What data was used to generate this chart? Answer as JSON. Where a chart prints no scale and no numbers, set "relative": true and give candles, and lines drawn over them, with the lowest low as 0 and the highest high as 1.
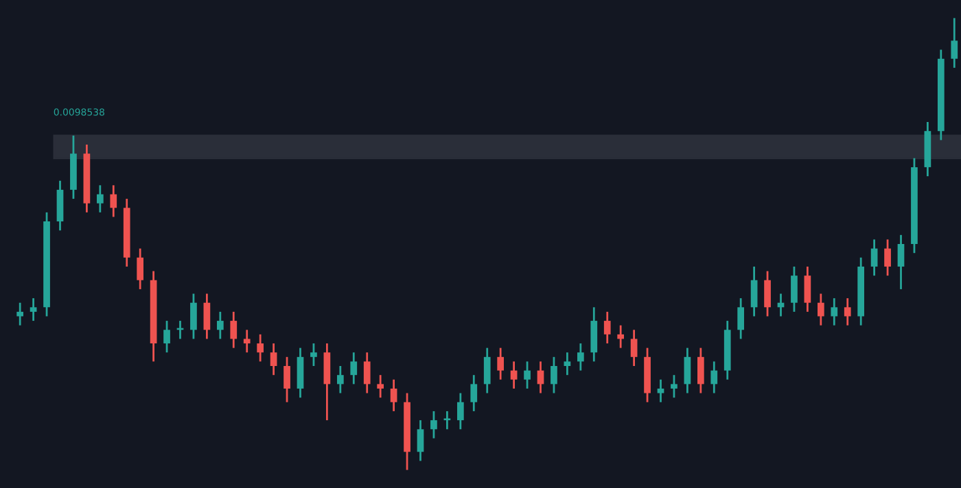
{
  "chart_data": {
    "type": "candlestick",
    "relative": true,
    "grid": false,
    "legend": false,
    "categories": [
      null,
      null,
      null,
      null,
      null,
      null,
      null,
      null,
      null,
      null,
      null,
      null,
      null,
      null,
      null,
      null,
      null,
      null,
      null,
      null,
      null,
      null,
      null,
      null,
      null,
      null,
      null,
      null,
      null,
      null,
      null,
      null,
      null,
      null,
      null,
      null,
      null,
      null,
      null,
      null,
      null,
      null,
      null,
      null,
      null,
      null,
      null,
      null,
      null,
      null,
      null,
      null,
      null,
      null,
      null,
      null,
      null,
      null,
      null,
      null,
      null,
      null,
      null,
      null,
      null,
      null,
      null,
      null,
      null,
      null,
      null
    ],
    "ohlc": [
      [
        0.34,
        0.37,
        0.32,
        0.35
      ],
      [
        0.35,
        0.38,
        0.33,
        0.36
      ],
      [
        0.36,
        0.57,
        0.34,
        0.55
      ],
      [
        0.55,
        0.64,
        0.53,
        0.62
      ],
      [
        0.62,
        0.74,
        0.6,
        0.7
      ],
      [
        0.7,
        0.72,
        0.57,
        0.59
      ],
      [
        0.59,
        0.63,
        0.57,
        0.61
      ],
      [
        0.61,
        0.63,
        0.56,
        0.58
      ],
      [
        0.58,
        0.6,
        0.45,
        0.47
      ],
      [
        0.47,
        0.49,
        0.4,
        0.42
      ],
      [
        0.42,
        0.44,
        0.24,
        0.28
      ],
      [
        0.28,
        0.33,
        0.26,
        0.31
      ],
      [
        0.31,
        0.33,
        0.29,
        0.31
      ],
      [
        0.31,
        0.39,
        0.29,
        0.37
      ],
      [
        0.37,
        0.39,
        0.29,
        0.31
      ],
      [
        0.31,
        0.35,
        0.29,
        0.33
      ],
      [
        0.33,
        0.35,
        0.27,
        0.29
      ],
      [
        0.29,
        0.31,
        0.26,
        0.28
      ],
      [
        0.28,
        0.3,
        0.24,
        0.26
      ],
      [
        0.26,
        0.28,
        0.21,
        0.23
      ],
      [
        0.23,
        0.25,
        0.15,
        0.18
      ],
      [
        0.18,
        0.27,
        0.16,
        0.25
      ],
      [
        0.25,
        0.28,
        0.23,
        0.26
      ],
      [
        0.26,
        0.28,
        0.11,
        0.19
      ],
      [
        0.19,
        0.23,
        0.17,
        0.21
      ],
      [
        0.21,
        0.26,
        0.19,
        0.24
      ],
      [
        0.24,
        0.26,
        0.17,
        0.19
      ],
      [
        0.19,
        0.21,
        0.16,
        0.18
      ],
      [
        0.18,
        0.2,
        0.13,
        0.15
      ],
      [
        0.15,
        0.17,
        0.0,
        0.04
      ],
      [
        0.04,
        0.11,
        0.02,
        0.09
      ],
      [
        0.09,
        0.13,
        0.07,
        0.11
      ],
      [
        0.11,
        0.13,
        0.09,
        0.11
      ],
      [
        0.11,
        0.17,
        0.09,
        0.15
      ],
      [
        0.15,
        0.21,
        0.13,
        0.19
      ],
      [
        0.19,
        0.27,
        0.17,
        0.25
      ],
      [
        0.25,
        0.27,
        0.2,
        0.22
      ],
      [
        0.22,
        0.24,
        0.18,
        0.2
      ],
      [
        0.2,
        0.24,
        0.18,
        0.22
      ],
      [
        0.22,
        0.24,
        0.17,
        0.19
      ],
      [
        0.19,
        0.25,
        0.17,
        0.23
      ],
      [
        0.23,
        0.26,
        0.21,
        0.24
      ],
      [
        0.24,
        0.28,
        0.22,
        0.26
      ],
      [
        0.26,
        0.36,
        0.24,
        0.33
      ],
      [
        0.33,
        0.35,
        0.28,
        0.3
      ],
      [
        0.3,
        0.32,
        0.27,
        0.29
      ],
      [
        0.29,
        0.31,
        0.23,
        0.25
      ],
      [
        0.25,
        0.27,
        0.15,
        0.17
      ],
      [
        0.17,
        0.2,
        0.15,
        0.18
      ],
      [
        0.18,
        0.21,
        0.16,
        0.19
      ],
      [
        0.19,
        0.27,
        0.17,
        0.25
      ],
      [
        0.25,
        0.27,
        0.17,
        0.19
      ],
      [
        0.19,
        0.24,
        0.17,
        0.22
      ],
      [
        0.22,
        0.33,
        0.2,
        0.31
      ],
      [
        0.31,
        0.38,
        0.29,
        0.36
      ],
      [
        0.36,
        0.45,
        0.34,
        0.42
      ],
      [
        0.42,
        0.44,
        0.34,
        0.36
      ],
      [
        0.36,
        0.39,
        0.34,
        0.37
      ],
      [
        0.37,
        0.45,
        0.35,
        0.43
      ],
      [
        0.43,
        0.45,
        0.35,
        0.37
      ],
      [
        0.37,
        0.39,
        0.32,
        0.34
      ],
      [
        0.34,
        0.38,
        0.32,
        0.36
      ],
      [
        0.36,
        0.38,
        0.32,
        0.34
      ],
      [
        0.34,
        0.47,
        0.32,
        0.45
      ],
      [
        0.45,
        0.51,
        0.43,
        0.49
      ],
      [
        0.49,
        0.51,
        0.43,
        0.45
      ],
      [
        0.45,
        0.52,
        0.4,
        0.5
      ],
      [
        0.5,
        0.69,
        0.48,
        0.67
      ],
      [
        0.67,
        0.77,
        0.65,
        0.75
      ],
      [
        0.75,
        0.93,
        0.73,
        0.91
      ],
      [
        0.91,
        1.0,
        0.89,
        0.95
      ]
    ],
    "colors": [
      "#26a69a",
      "#26a69a",
      "#26a69a",
      "#26a69a",
      "#26a69a",
      "#ef5350",
      "#26a69a",
      "#ef5350",
      "#ef5350",
      "#ef5350",
      "#ef5350",
      "#26a69a",
      "#26a69a",
      "#26a69a",
      "#ef5350",
      "#26a69a",
      "#ef5350",
      "#ef5350",
      "#ef5350",
      "#ef5350",
      "#ef5350",
      "#26a69a",
      "#26a69a",
      "#ef5350",
      "#26a69a",
      "#26a69a",
      "#ef5350",
      "#ef5350",
      "#ef5350",
      "#ef5350",
      "#26a69a",
      "#26a69a",
      "#26a69a",
      "#26a69a",
      "#26a69a",
      "#26a69a",
      "#ef5350",
      "#ef5350",
      "#26a69a",
      "#ef5350",
      "#26a69a",
      "#26a69a",
      "#26a69a",
      "#26a69a",
      "#ef5350",
      "#ef5350",
      "#ef5350",
      "#ef5350",
      "#26a69a",
      "#26a69a",
      "#26a69a",
      "#ef5350",
      "#26a69a",
      "#26a69a",
      "#26a69a",
      "#26a69a",
      "#ef5350",
      "#26a69a",
      "#26a69a",
      "#ef5350",
      "#ef5350",
      "#26a69a",
      "#ef5350",
      "#26a69a",
      "#26a69a",
      "#ef5350",
      "#26a69a",
      "#26a69a",
      "#26a69a",
      "#26a69a",
      "#26a69a"
    ],
    "bands": [
      {
        "axis": "y",
        "from": 0.69,
        "to": 0.74,
        "label": "0.0098538",
        "color": "#2a2e39"
      }
    ]
  }
}
